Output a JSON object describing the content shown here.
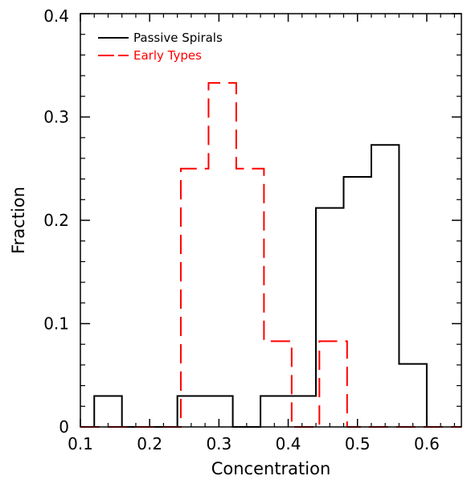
{
  "chart_data": {
    "type": "histogram",
    "xlabel": "Concentration",
    "ylabel": "Fraction",
    "xlim": [
      0.1,
      0.65
    ],
    "ylim": [
      0,
      0.4
    ],
    "x_ticks": [
      "0.1",
      "0.2",
      "0.3",
      "0.4",
      "0.5",
      "0.6"
    ],
    "y_ticks": [
      "0",
      "0.1",
      "0.2",
      "0.3",
      "0.4"
    ],
    "legend_position": "top-left",
    "series": [
      {
        "name": "Passive Spirals",
        "color": "#000000",
        "line_style": "solid",
        "bins": [
          {
            "x0": 0.12,
            "x1": 0.16,
            "y": 0.03
          },
          {
            "x0": 0.16,
            "x1": 0.24,
            "y": 0.0
          },
          {
            "x0": 0.24,
            "x1": 0.32,
            "y": 0.03
          },
          {
            "x0": 0.32,
            "x1": 0.36,
            "y": 0.0
          },
          {
            "x0": 0.36,
            "x1": 0.44,
            "y": 0.03
          },
          {
            "x0": 0.44,
            "x1": 0.48,
            "y": 0.212
          },
          {
            "x0": 0.48,
            "x1": 0.52,
            "y": 0.242
          },
          {
            "x0": 0.52,
            "x1": 0.56,
            "y": 0.273
          },
          {
            "x0": 0.56,
            "x1": 0.6,
            "y": 0.061
          }
        ]
      },
      {
        "name": "Early Types",
        "color": "#ff0000",
        "line_style": "dashed",
        "bins": [
          {
            "x0": 0.1,
            "x1": 0.245,
            "y": 0.0
          },
          {
            "x0": 0.245,
            "x1": 0.285,
            "y": 0.25
          },
          {
            "x0": 0.285,
            "x1": 0.325,
            "y": 0.333
          },
          {
            "x0": 0.325,
            "x1": 0.365,
            "y": 0.25
          },
          {
            "x0": 0.365,
            "x1": 0.405,
            "y": 0.083
          },
          {
            "x0": 0.405,
            "x1": 0.445,
            "y": 0.0
          },
          {
            "x0": 0.445,
            "x1": 0.485,
            "y": 0.083
          },
          {
            "x0": 0.485,
            "x1": 0.65,
            "y": 0.0
          }
        ]
      }
    ]
  }
}
